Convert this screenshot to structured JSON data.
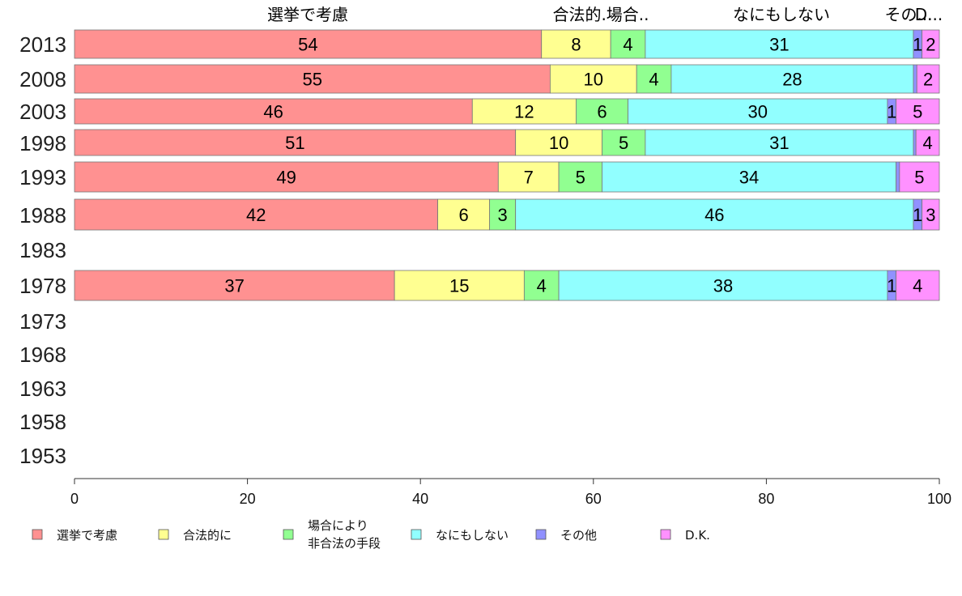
{
  "chart_data": {
    "type": "bar",
    "orientation": "horizontal",
    "stacked": true,
    "xlim": [
      0,
      100
    ],
    "x_ticks": [
      "0",
      "20",
      "40",
      "60",
      "80",
      "100"
    ],
    "years": [
      "2013",
      "2008",
      "2003",
      "1998",
      "1993",
      "1988",
      "1983",
      "1978",
      "1973",
      "1968",
      "1963",
      "1958",
      "1953"
    ],
    "top_labels": [
      "選挙で考慮",
      "合法的.場合..",
      "なにもしない",
      "その...",
      "D..."
    ],
    "series": [
      {
        "name": "選挙で考慮",
        "color": "#ff9191",
        "values": [
          54,
          55,
          46,
          51,
          49,
          42,
          null,
          37,
          null,
          null,
          null,
          null,
          null
        ]
      },
      {
        "name": "合法的に",
        "color": "#ffff91",
        "values": [
          8,
          10,
          12,
          10,
          7,
          6,
          null,
          15,
          null,
          null,
          null,
          null,
          null
        ]
      },
      {
        "name": "場合により 非合法の手段",
        "color": "#91ff91",
        "values": [
          4,
          4,
          6,
          5,
          5,
          3,
          null,
          4,
          null,
          null,
          null,
          null,
          null
        ]
      },
      {
        "name": "なにもしない",
        "color": "#91ffff",
        "values": [
          31,
          28,
          30,
          31,
          34,
          46,
          null,
          38,
          null,
          null,
          null,
          null,
          null
        ]
      },
      {
        "name": "その他",
        "color": "#9191ff",
        "values": [
          1,
          0.4,
          1,
          0.3,
          0.4,
          1,
          null,
          1,
          null,
          null,
          null,
          null,
          null
        ]
      },
      {
        "name": "D.K.",
        "color": "#ff91ff",
        "values": [
          2,
          2,
          5,
          4,
          5,
          3,
          null,
          4,
          null,
          null,
          null,
          null,
          null
        ]
      }
    ],
    "data_labels": [
      [
        "54",
        "8",
        "4",
        "31",
        "1",
        "2"
      ],
      [
        "55",
        "10",
        "4",
        "28",
        "",
        "2"
      ],
      [
        "46",
        "12",
        "6",
        "30",
        "1",
        "5"
      ],
      [
        "51",
        "10",
        "5",
        "31",
        "",
        "4"
      ],
      [
        "49",
        "7",
        "5",
        "34",
        "",
        "5"
      ],
      [
        "42",
        "6",
        "3",
        "46",
        "1",
        "3"
      ],
      [],
      [
        "37",
        "15",
        "4",
        "38",
        "1",
        "4"
      ],
      [],
      [],
      [],
      [],
      []
    ],
    "legend": [
      {
        "label": "選挙で考慮",
        "color": "#ff9191"
      },
      {
        "label": "合法的に",
        "color": "#ffff91"
      },
      {
        "label_lines": [
          "場合により",
          "非合法の手段"
        ],
        "color": "#91ff91"
      },
      {
        "label": "なにもしない",
        "color": "#91ffff"
      },
      {
        "label": "その他",
        "color": "#9191ff"
      },
      {
        "label": "D.K.",
        "color": "#ff91ff"
      }
    ],
    "legend_position": "bottom"
  }
}
